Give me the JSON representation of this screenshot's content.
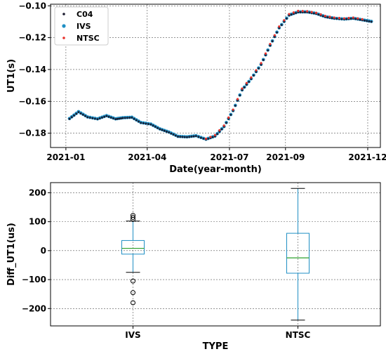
{
  "chart_data": [
    {
      "type": "scatter",
      "xlabel": "Date(year-month)",
      "ylabel": "UT1(s)",
      "x_ticks": [
        "2021-01",
        "2021-04",
        "2021-07",
        "2021-09",
        "2021-12"
      ],
      "x_tick_values": [
        "2021-01-01",
        "2021-04-01",
        "2021-07-01",
        "2021-09-01",
        "2021-12-01"
      ],
      "xlim": [
        "2020-12-15",
        "2021-12-15"
      ],
      "ylim": [
        -0.189,
        -0.099
      ],
      "y_ticks": [
        -0.18,
        -0.16,
        -0.14,
        -0.12,
        -0.1
      ],
      "y_tick_labels": [
        "−0.18",
        "−0.16",
        "−0.14",
        "−0.12",
        "−0.10"
      ],
      "grid": true,
      "legend_position": "top-left",
      "series": [
        {
          "name": "C04",
          "color": "#1a1a2e",
          "x": [
            "2021-01-05",
            "2021-01-15",
            "2021-01-25",
            "2021-02-05",
            "2021-02-15",
            "2021-02-25",
            "2021-03-05",
            "2021-03-15",
            "2021-03-25",
            "2021-04-05",
            "2021-04-15",
            "2021-04-25",
            "2021-05-05",
            "2021-05-15",
            "2021-05-25",
            "2021-06-05",
            "2021-06-15",
            "2021-06-25",
            "2021-07-05",
            "2021-07-15",
            "2021-07-25",
            "2021-08-05",
            "2021-08-15",
            "2021-08-25",
            "2021-09-05",
            "2021-09-15",
            "2021-09-25",
            "2021-10-05",
            "2021-10-15",
            "2021-10-25",
            "2021-11-05",
            "2021-11-15",
            "2021-11-25",
            "2021-12-05"
          ],
          "y": [
            -0.171,
            -0.1668,
            -0.17,
            -0.1712,
            -0.1692,
            -0.1712,
            -0.1705,
            -0.1702,
            -0.1735,
            -0.1745,
            -0.1775,
            -0.1795,
            -0.1822,
            -0.1825,
            -0.1818,
            -0.184,
            -0.182,
            -0.176,
            -0.166,
            -0.153,
            -0.146,
            -0.137,
            -0.125,
            -0.114,
            -0.106,
            -0.104,
            -0.104,
            -0.105,
            -0.107,
            -0.108,
            -0.1085,
            -0.108,
            -0.109,
            -0.11
          ]
        },
        {
          "name": "IVS",
          "color": "#1f8fc4",
          "x": [
            "2021-01-05",
            "2021-01-15",
            "2021-01-25",
            "2021-02-05",
            "2021-02-15",
            "2021-02-25",
            "2021-03-05",
            "2021-03-15",
            "2021-03-25",
            "2021-04-05",
            "2021-04-15",
            "2021-04-25",
            "2021-05-05",
            "2021-05-15",
            "2021-05-25",
            "2021-06-05",
            "2021-06-15",
            "2021-06-25",
            "2021-07-05",
            "2021-07-15",
            "2021-07-25",
            "2021-08-05",
            "2021-08-15",
            "2021-08-25",
            "2021-09-05",
            "2021-09-15",
            "2021-09-25",
            "2021-10-05",
            "2021-10-15",
            "2021-10-25",
            "2021-11-05",
            "2021-11-15",
            "2021-11-25",
            "2021-12-05"
          ],
          "y": [
            -0.1708,
            -0.1665,
            -0.1698,
            -0.171,
            -0.169,
            -0.171,
            -0.1703,
            -0.17,
            -0.1733,
            -0.1743,
            -0.1773,
            -0.1793,
            -0.182,
            -0.1823,
            -0.1816,
            -0.1838,
            -0.1818,
            -0.1758,
            -0.1658,
            -0.1528,
            -0.1458,
            -0.1368,
            -0.1248,
            -0.1138,
            -0.1058,
            -0.1038,
            -0.1038,
            -0.1048,
            -0.1068,
            -0.1078,
            -0.1083,
            -0.1078,
            -0.1088,
            -0.1098
          ]
        },
        {
          "name": "NTSC",
          "color": "#e8322b",
          "x": [
            "2021-06-05",
            "2021-06-15",
            "2021-06-25",
            "2021-07-05",
            "2021-07-15",
            "2021-07-25",
            "2021-08-05",
            "2021-08-15",
            "2021-08-25",
            "2021-09-05",
            "2021-09-15",
            "2021-09-25",
            "2021-10-05",
            "2021-10-15",
            "2021-10-25",
            "2021-11-05",
            "2021-11-15",
            "2021-11-25"
          ],
          "y": [
            -0.1835,
            -0.1812,
            -0.1752,
            -0.1652,
            -0.152,
            -0.145,
            -0.136,
            -0.124,
            -0.113,
            -0.1052,
            -0.1032,
            -0.1034,
            -0.1044,
            -0.1064,
            -0.1074,
            -0.1079,
            -0.1074,
            -0.1084
          ]
        }
      ]
    },
    {
      "type": "box",
      "xlabel": "TYPE",
      "ylabel": "Diff_UT1(us)",
      "categories": [
        "IVS",
        "NTSC"
      ],
      "ylim": [
        -260,
        235
      ],
      "y_ticks": [
        -200,
        -100,
        0,
        100,
        200
      ],
      "y_tick_labels": [
        "−200",
        "−100",
        "0",
        "100",
        "200"
      ],
      "grid": true,
      "box_color": "#1f8fc4",
      "median_color": "#2ca02c",
      "boxes": [
        {
          "name": "IVS",
          "whislo": -75,
          "q1": -12,
          "median": 8,
          "q3": 35,
          "whishi": 102,
          "fliers": [
            108,
            115,
            122,
            -105,
            -145,
            -180
          ]
        },
        {
          "name": "NTSC",
          "whislo": -240,
          "q1": -78,
          "median": -25,
          "q3": 60,
          "whishi": 215,
          "fliers": []
        }
      ]
    }
  ]
}
